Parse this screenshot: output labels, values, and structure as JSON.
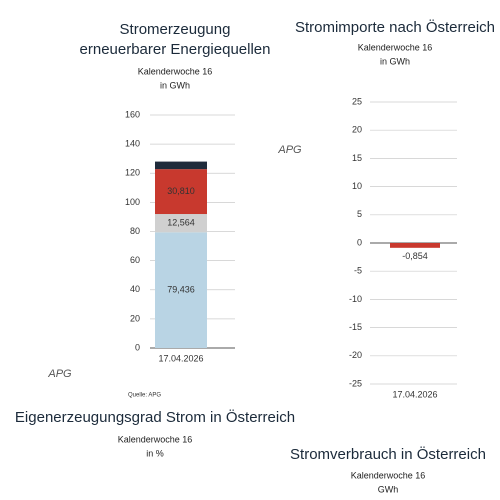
{
  "logo": "APG",
  "source": "Quelle: APG",
  "chart_data": [
    {
      "type": "stacked-bar",
      "title": [
        "Stromerzeugung",
        "erneuerbarer Energiequellen"
      ],
      "subtitle": [
        "Kalenderwoche 16",
        "in GWh"
      ],
      "categories": [
        "17.04.2026"
      ],
      "series": [
        {
          "color": "#b9d4e4",
          "values": [
            79.436
          ],
          "value_labels": [
            "79,436"
          ]
        },
        {
          "color": "#d0d0d0",
          "values": [
            12.564
          ],
          "value_labels": [
            "12,564"
          ]
        },
        {
          "color": "#c8392e",
          "values": [
            30.81
          ],
          "value_labels": [
            "30,810"
          ]
        },
        {
          "color": "#1f2b3b",
          "values": [
            5.2
          ]
        }
      ],
      "ylim": [
        0,
        160
      ],
      "yticks": [
        0,
        20,
        40,
        60,
        80,
        100,
        120,
        140,
        160
      ],
      "grid": true
    },
    {
      "type": "bar",
      "title": [
        "Stromimporte nach Österreich"
      ],
      "subtitle": [
        "Kalenderwoche 16",
        "in GWh"
      ],
      "categories": [
        "17.04.2026"
      ],
      "series": [
        {
          "color": "#c8392e",
          "values": [
            -0.854
          ],
          "value_labels": [
            "-0,854"
          ]
        }
      ],
      "ylim": [
        -25,
        25
      ],
      "yticks": [
        -25,
        -20,
        -15,
        -10,
        -5,
        0,
        5,
        10,
        15,
        20,
        25
      ],
      "grid": true
    },
    {
      "type": "bar",
      "title": [
        "Eigenerzeugungsgrad Strom in Österreich"
      ],
      "subtitle": [
        "Kalenderwoche 16",
        "in %"
      ]
    },
    {
      "type": "bar",
      "title": [
        "Stromverbrauch in Österreich"
      ],
      "subtitle": [
        "Kalenderwoche 16",
        "GWh"
      ]
    }
  ]
}
